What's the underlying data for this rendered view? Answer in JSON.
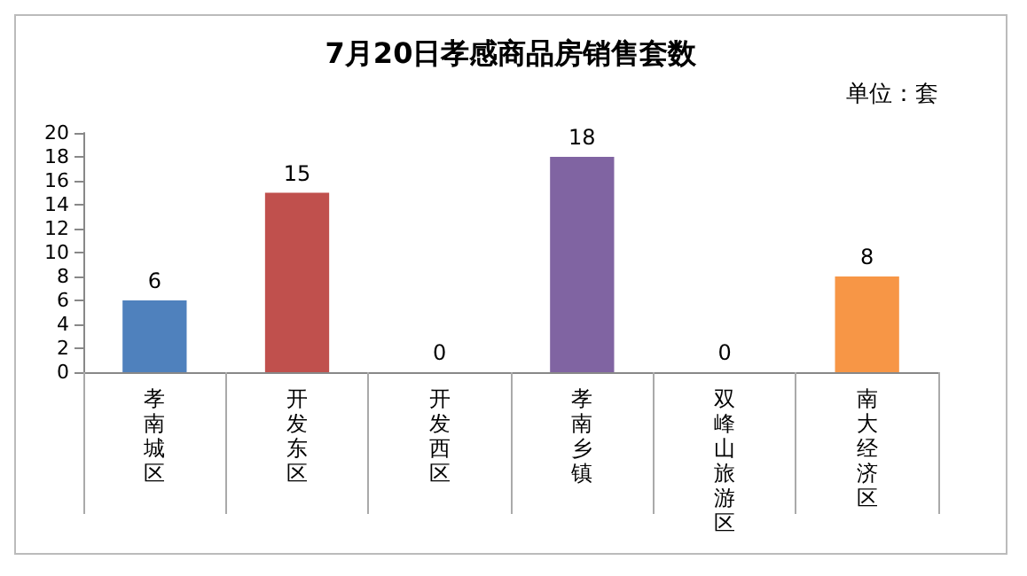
{
  "chart_data": {
    "type": "bar",
    "title": "7月20日孝感商品房销售套数",
    "annotations": [
      "单位：套"
    ],
    "categories": [
      "孝南城区",
      "开发东区",
      "开发西区",
      "孝南乡镇",
      "双峰山旅游区",
      "南大经济区"
    ],
    "values": [
      6,
      15,
      0,
      18,
      0,
      8
    ],
    "colors": [
      "#4f81bd",
      "#c0504d",
      "#9bbb59",
      "#8064a2",
      "#4bacc6",
      "#f79646"
    ],
    "ylim": [
      0,
      20
    ],
    "yticks": [
      0,
      2,
      4,
      6,
      8,
      10,
      12,
      14,
      16,
      18,
      20
    ],
    "data_labels": true
  }
}
